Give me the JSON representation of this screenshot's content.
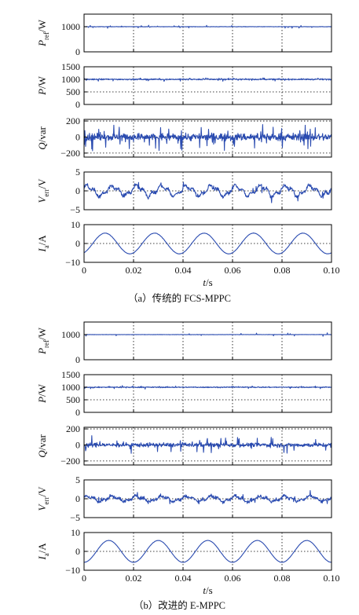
{
  "colors": {
    "trace": "#2a4bb0",
    "axis": "#000000",
    "grid": "#000000"
  },
  "figures": [
    {
      "caption": "（a）传统的 FCS-MPPC",
      "xlabel": "t/s",
      "xticks": [
        "0",
        "0.02",
        "0.04",
        "0.06",
        "0.08",
        "0.10"
      ]
    },
    {
      "caption": "（b）改进的 E-MPPC",
      "xlabel": "t/s",
      "xticks": [
        "0",
        "0.02",
        "0.04",
        "0.06",
        "0.08",
        "0.10"
      ]
    }
  ],
  "chart_data": [
    {
      "type": "line",
      "figure": 0,
      "ylabel": "P_ref/W",
      "ylim": [
        0,
        1500
      ],
      "yticks": [
        "1000",
        "0"
      ],
      "ytick_values": [
        1000,
        0
      ],
      "grid": "dotted",
      "xlim": [
        0,
        0.1
      ],
      "series": [
        {
          "values_desc": "constant",
          "mean": 1000,
          "noise": 8,
          "spikes": 0.03,
          "spike_amp": 60
        }
      ]
    },
    {
      "type": "line",
      "figure": 0,
      "ylabel": "P/W",
      "ylim": [
        0,
        1500
      ],
      "yticks": [
        "1500",
        "1000",
        "500",
        "0"
      ],
      "ytick_values": [
        1500,
        1000,
        500,
        0
      ],
      "grid": "dotted",
      "xlim": [
        0,
        0.1
      ],
      "series": [
        {
          "values_desc": "constant",
          "mean": 1000,
          "noise": 25,
          "spikes": 0.05,
          "spike_amp": 60
        }
      ]
    },
    {
      "type": "line",
      "figure": 0,
      "ylabel": "Q/var",
      "ylim": [
        -250,
        220
      ],
      "yticks": [
        "200",
        "0",
        "−200"
      ],
      "ytick_values": [
        200,
        0,
        -200
      ],
      "grid": "dotted",
      "xlim": [
        0,
        0.1
      ],
      "series": [
        {
          "values_desc": "noise",
          "mean": 0,
          "noise": 45,
          "spikes": 0.06,
          "spike_amp": 150
        }
      ]
    },
    {
      "type": "line",
      "figure": 0,
      "ylabel": "V_err/V",
      "ylim": [
        -5,
        5
      ],
      "yticks": [
        "5",
        "0",
        "−5"
      ],
      "ytick_values": [
        5,
        0,
        -5
      ],
      "grid": "dotted",
      "xlim": [
        0,
        0.1
      ],
      "series": [
        {
          "values_desc": "ripple",
          "mean": 0,
          "amp": 1.2,
          "freq": 100,
          "noise": 0.45,
          "spikes": 0.02,
          "spike_amp": 1.5
        }
      ]
    },
    {
      "type": "line",
      "figure": 0,
      "ylabel": "I_a/A",
      "ylim": [
        -10,
        10
      ],
      "yticks": [
        "10",
        "0",
        "−10"
      ],
      "ytick_values": [
        10,
        0,
        -10
      ],
      "grid": "dotted",
      "xlim": [
        0,
        0.1
      ],
      "series": [
        {
          "values_desc": "sine",
          "mean": 0,
          "amp": 5.5,
          "freq": 50,
          "phase": -1.1,
          "noise": 0.08
        }
      ]
    },
    {
      "type": "line",
      "figure": 1,
      "ylabel": "P_ref/W",
      "ylim": [
        0,
        1500
      ],
      "yticks": [
        "1000",
        "0"
      ],
      "ytick_values": [
        1000,
        0
      ],
      "grid": "dotted",
      "xlim": [
        0,
        0.1
      ],
      "series": [
        {
          "values_desc": "constant",
          "mean": 1000,
          "noise": 6,
          "spikes": 0.02,
          "spike_amp": 70
        }
      ]
    },
    {
      "type": "line",
      "figure": 1,
      "ylabel": "P/W",
      "ylim": [
        0,
        1500
      ],
      "yticks": [
        "1500",
        "1000",
        "500",
        "0"
      ],
      "ytick_values": [
        1500,
        1000,
        500,
        0
      ],
      "grid": "dotted",
      "xlim": [
        0,
        0.1
      ],
      "series": [
        {
          "values_desc": "constant",
          "mean": 1000,
          "noise": 20,
          "spikes": 0.04,
          "spike_amp": 60
        }
      ]
    },
    {
      "type": "line",
      "figure": 1,
      "ylabel": "Q/var",
      "ylim": [
        -250,
        220
      ],
      "yticks": [
        "200",
        "0",
        "−200"
      ],
      "ytick_values": [
        200,
        0,
        -200
      ],
      "grid": "dotted",
      "xlim": [
        0,
        0.1
      ],
      "series": [
        {
          "values_desc": "noise",
          "mean": 0,
          "noise": 25,
          "spikes": 0.05,
          "spike_amp": 100
        }
      ]
    },
    {
      "type": "line",
      "figure": 1,
      "ylabel": "V_err/V",
      "ylim": [
        -5,
        5
      ],
      "yticks": [
        "5",
        "0",
        "−5"
      ],
      "ytick_values": [
        5,
        0,
        -5
      ],
      "grid": "dotted",
      "xlim": [
        0,
        0.1
      ],
      "series": [
        {
          "values_desc": "ripple",
          "mean": 0,
          "amp": 0.6,
          "freq": 100,
          "noise": 0.45,
          "spikes": 0.02,
          "spike_amp": 1.8
        }
      ]
    },
    {
      "type": "line",
      "figure": 1,
      "ylabel": "I_a/A",
      "ylim": [
        -10,
        10
      ],
      "yticks": [
        "10",
        "0",
        "−10"
      ],
      "ytick_values": [
        10,
        0,
        -10
      ],
      "grid": "dotted",
      "xlim": [
        0,
        0.1
      ],
      "series": [
        {
          "values_desc": "sine",
          "mean": 0,
          "amp": 5.8,
          "freq": 50,
          "phase": -1.57,
          "noise": 0.06
        }
      ]
    }
  ]
}
